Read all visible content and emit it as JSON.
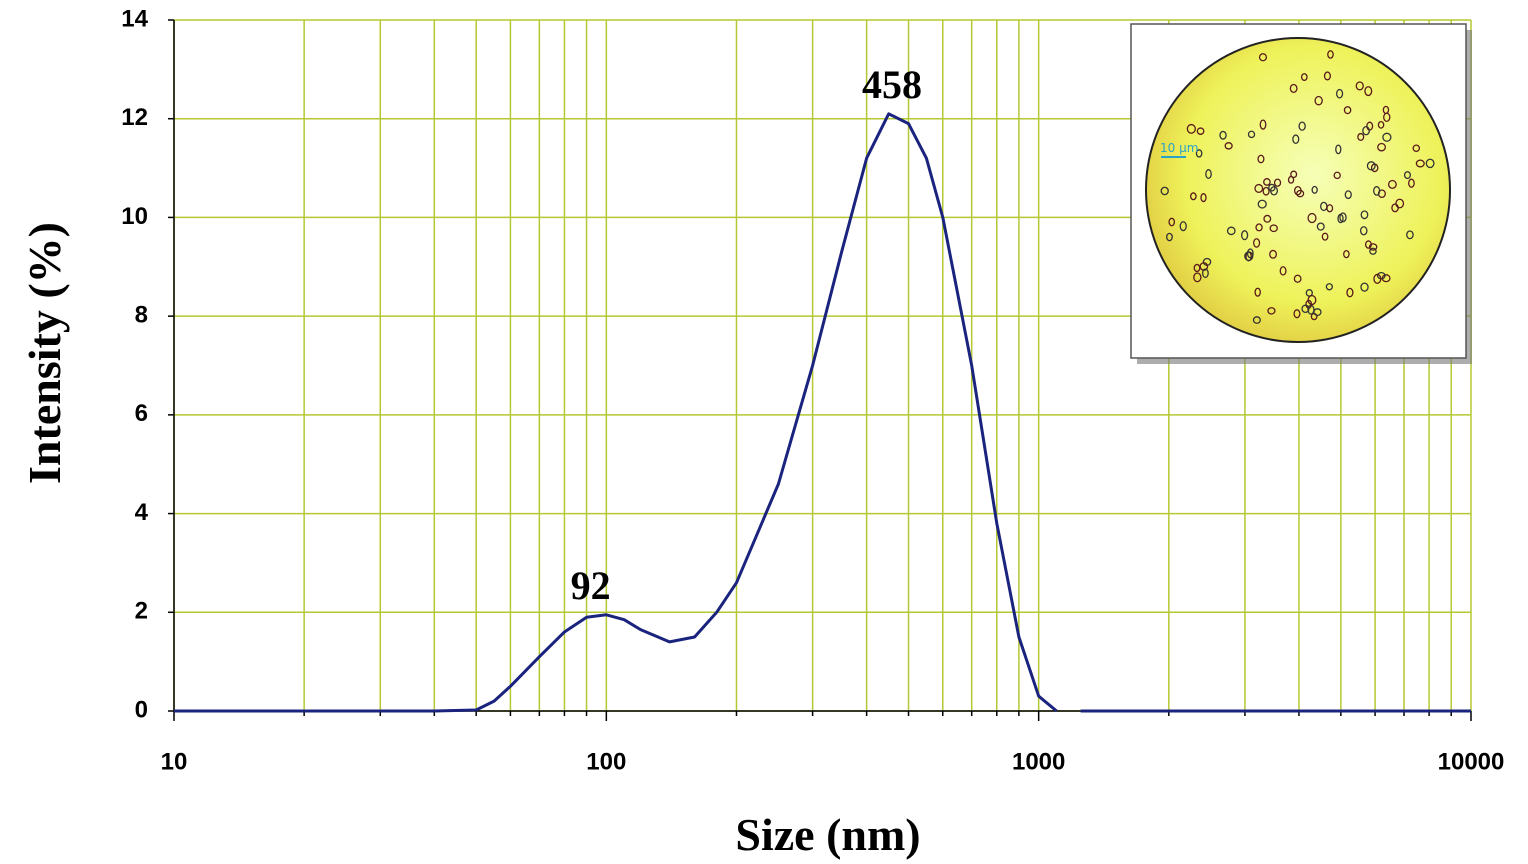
{
  "chart_data": {
    "type": "line",
    "x_label": "Size (nm)",
    "y_label": "Intensity (%)",
    "x_scale": "log",
    "xlim": [
      10,
      10000
    ],
    "xticks": [
      10,
      100,
      1000,
      10000
    ],
    "x_minor_ticks": [
      20,
      30,
      40,
      50,
      60,
      70,
      80,
      90,
      200,
      300,
      400,
      500,
      600,
      700,
      800,
      900,
      2000,
      3000,
      4000,
      5000,
      6000,
      7000,
      8000,
      9000
    ],
    "ylim": [
      0,
      14
    ],
    "yticks": [
      0,
      2,
      4,
      6,
      8,
      10,
      12,
      14
    ],
    "grid": true,
    "grid_color": "#b5c832",
    "x": [
      10,
      20,
      30,
      40,
      50,
      55,
      60,
      70,
      80,
      90,
      100,
      110,
      120,
      140,
      160,
      180,
      200,
      250,
      300,
      350,
      400,
      450,
      500,
      550,
      600,
      700,
      800,
      900,
      1000,
      1100,
      1200,
      1250,
      10000
    ],
    "series": [
      {
        "color": "#1a237e",
        "values": [
          0,
          0,
          0,
          0,
          0.02,
          0.2,
          0.5,
          1.1,
          1.6,
          1.9,
          1.95,
          1.85,
          1.65,
          1.4,
          1.5,
          2.0,
          2.6,
          4.6,
          7.0,
          9.3,
          11.2,
          12.1,
          11.9,
          11.2,
          10.0,
          7.0,
          3.8,
          1.5,
          0.3,
          0,
          null,
          0,
          0
        ]
      }
    ],
    "annotations": [
      {
        "text": "92",
        "x": 92,
        "y": 1.95
      },
      {
        "text": "458",
        "x": 458,
        "y": 12.1
      }
    ],
    "inset_label": "10 µm"
  }
}
